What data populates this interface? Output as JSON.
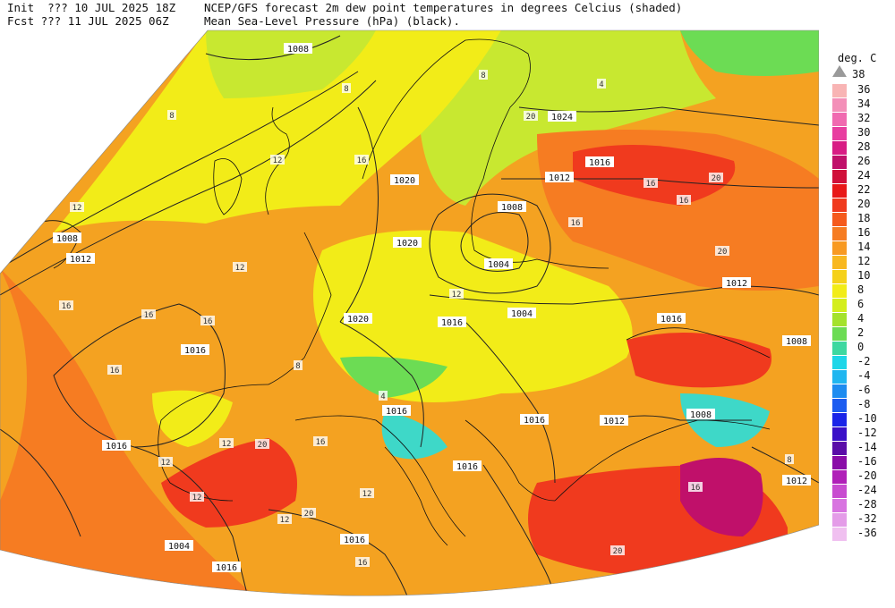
{
  "header": {
    "line1_left": "Init  ??? 10 JUL 2025 18Z",
    "line2_left": "Fcst ??? 11 JUL 2025 06Z",
    "line1_right": "NCEP/GFS forecast 2m dew point temperatures in degrees Celcius (shaded)",
    "line2_right": "Mean Sea-Level Pressure (hPa) (black)."
  },
  "legend": {
    "title": "deg. C",
    "top_label": "38",
    "items": [
      {
        "label": "36",
        "color": "#f8b4b4"
      },
      {
        "label": "34",
        "color": "#f38fb8"
      },
      {
        "label": "32",
        "color": "#f06ab0"
      },
      {
        "label": "30",
        "color": "#e83ea0"
      },
      {
        "label": "28",
        "color": "#d81c84"
      },
      {
        "label": "26",
        "color": "#c0106a"
      },
      {
        "label": "24",
        "color": "#d0103a"
      },
      {
        "label": "22",
        "color": "#e81818"
      },
      {
        "label": "20",
        "color": "#f03a1e"
      },
      {
        "label": "18",
        "color": "#f55a1c"
      },
      {
        "label": "16",
        "color": "#f67c22"
      },
      {
        "label": "14",
        "color": "#f89a22"
      },
      {
        "label": "12",
        "color": "#f8b820"
      },
      {
        "label": "10",
        "color": "#f5d11a"
      },
      {
        "label": "8",
        "color": "#f2ec18"
      },
      {
        "label": "6",
        "color": "#d4ee1c"
      },
      {
        "label": "4",
        "color": "#a4e22c"
      },
      {
        "label": "2",
        "color": "#6cdc54"
      },
      {
        "label": "0",
        "color": "#3ed8a0"
      },
      {
        "label": "-2",
        "color": "#1ed6e8"
      },
      {
        "label": "-4",
        "color": "#20b6f0"
      },
      {
        "label": "-6",
        "color": "#1e8cf0"
      },
      {
        "label": "-8",
        "color": "#1c5cf0"
      },
      {
        "label": "-10",
        "color": "#1a24e8"
      },
      {
        "label": "-12",
        "color": "#3a10c8"
      },
      {
        "label": "-14",
        "color": "#5a0ca8"
      },
      {
        "label": "-16",
        "color": "#8a0ca8"
      },
      {
        "label": "-20",
        "color": "#b020b8"
      },
      {
        "label": "-24",
        "color": "#c84cd0"
      },
      {
        "label": "-28",
        "color": "#d874e0"
      },
      {
        "label": "-32",
        "color": "#e49ce8"
      },
      {
        "label": "-36",
        "color": "#f0c0f0"
      }
    ]
  },
  "map": {
    "colors": {
      "ocean": "#f4a221",
      "ocean_warm": "#f67c22",
      "hot": "#f03a1e",
      "land": "#f2ec18",
      "land_green": "#c8e830",
      "cool": "#6cdc54",
      "teal": "#3ed8c8",
      "coast": "#111111",
      "isobar": "#222222"
    },
    "isobar_labels": [
      "1008",
      "1008",
      "1012",
      "1016",
      "1016",
      "1020",
      "1020",
      "1024",
      "1016",
      "1012",
      "1004",
      "1008",
      "1004",
      "1012",
      "1020",
      "1016",
      "1016",
      "1016",
      "1016",
      "1012",
      "1016",
      "1008",
      "1008",
      "1012",
      "1004",
      "1016",
      "1016"
    ],
    "shade_labels": [
      "12",
      "12",
      "16",
      "16",
      "16",
      "16",
      "8",
      "8",
      "8",
      "12",
      "12",
      "16",
      "16",
      "20",
      "20",
      "20",
      "20",
      "16",
      "16",
      "12",
      "12",
      "12",
      "8",
      "8",
      "4",
      "4",
      "16",
      "16",
      "20",
      "20",
      "12",
      "12",
      "16"
    ]
  }
}
